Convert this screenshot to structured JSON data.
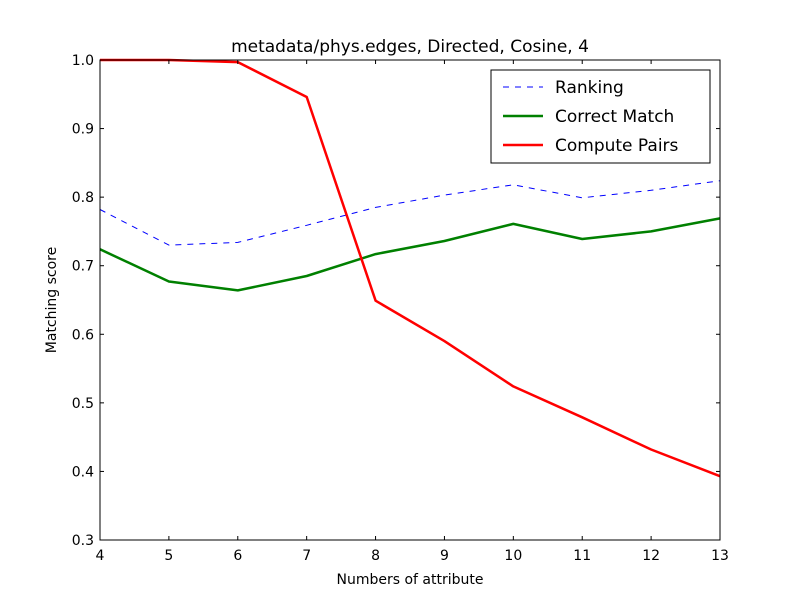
{
  "chart_data": {
    "type": "line",
    "title": "metadata/phys.edges, Directed, Cosine, 4",
    "xlabel": "Numbers of attribute",
    "ylabel": "Matching score",
    "xlim": [
      4,
      13
    ],
    "ylim": [
      0.3,
      1.0
    ],
    "x": [
      4,
      5,
      6,
      7,
      8,
      9,
      10,
      11,
      12,
      13
    ],
    "xticks": [
      "4",
      "5",
      "6",
      "7",
      "8",
      "9",
      "10",
      "11",
      "12",
      "13"
    ],
    "yticks": [
      "0.3",
      "0.4",
      "0.5",
      "0.6",
      "0.7",
      "0.8",
      "0.9",
      "1.0"
    ],
    "ytick_values": [
      0.3,
      0.4,
      0.5,
      0.6,
      0.7,
      0.8,
      0.9,
      1.0
    ],
    "grid": false,
    "legend_position": "top-right",
    "series": [
      {
        "name": "Ranking",
        "color": "#0000ff",
        "style": "dashed",
        "values": [
          0.782,
          0.73,
          0.734,
          0.759,
          0.785,
          0.803,
          0.818,
          0.799,
          0.81,
          0.824
        ]
      },
      {
        "name": "Correct Match",
        "color": "#008000",
        "style": "solid",
        "values": [
          0.724,
          0.677,
          0.664,
          0.685,
          0.717,
          0.736,
          0.761,
          0.739,
          0.75,
          0.769
        ]
      },
      {
        "name": "Compute Pairs",
        "color": "#ff0000",
        "style": "solid",
        "values": [
          1.0,
          1.0,
          0.997,
          0.946,
          0.649,
          0.59,
          0.524,
          0.479,
          0.432,
          0.393
        ]
      }
    ]
  }
}
